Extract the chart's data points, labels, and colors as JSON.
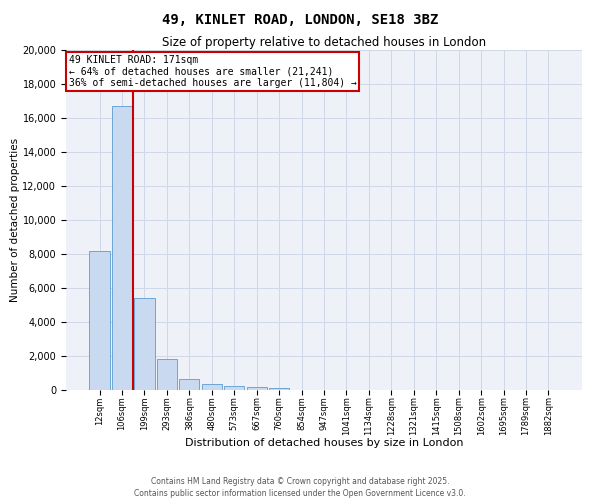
{
  "title1": "49, KINLET ROAD, LONDON, SE18 3BZ",
  "title2": "Size of property relative to detached houses in London",
  "xlabel": "Distribution of detached houses by size in London",
  "ylabel": "Number of detached properties",
  "categories": [
    "12sqm",
    "106sqm",
    "199sqm",
    "293sqm",
    "386sqm",
    "480sqm",
    "573sqm",
    "667sqm",
    "760sqm",
    "854sqm",
    "947sqm",
    "1041sqm",
    "1134sqm",
    "1228sqm",
    "1321sqm",
    "1415sqm",
    "1508sqm",
    "1602sqm",
    "1695sqm",
    "1789sqm",
    "1882sqm"
  ],
  "values": [
    8200,
    16700,
    5400,
    1850,
    650,
    350,
    260,
    200,
    130,
    0,
    0,
    0,
    0,
    0,
    0,
    0,
    0,
    0,
    0,
    0,
    0
  ],
  "bar_color": "#c9d9f0",
  "bar_edge_color": "#5b9bd5",
  "annotation_text": "49 KINLET ROAD: 171sqm\n← 64% of detached houses are smaller (21,241)\n36% of semi-detached houses are larger (11,804) →",
  "annotation_box_color": "#ffffff",
  "annotation_box_edge": "#cc0000",
  "vline_color": "#cc0000",
  "vline_x": 1.5,
  "ylim": [
    0,
    20000
  ],
  "yticks": [
    0,
    2000,
    4000,
    6000,
    8000,
    10000,
    12000,
    14000,
    16000,
    18000,
    20000
  ],
  "grid_color": "#d0d8e8",
  "background_color": "#eef2f8",
  "footer1": "Contains HM Land Registry data © Crown copyright and database right 2025.",
  "footer2": "Contains public sector information licensed under the Open Government Licence v3.0."
}
